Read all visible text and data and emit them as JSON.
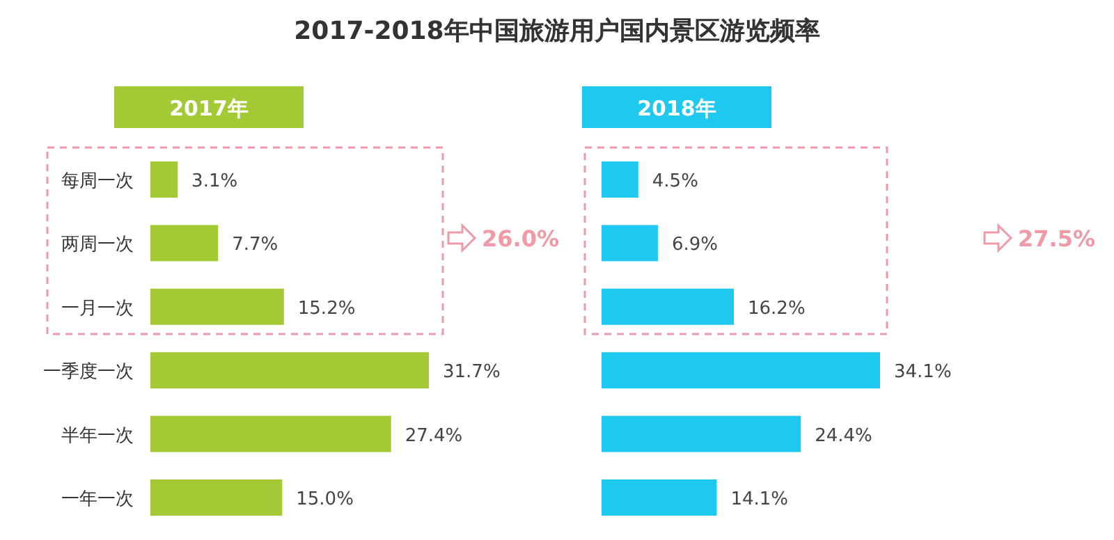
{
  "chart_data": [
    {
      "type": "bar",
      "orientation": "horizontal",
      "title": "2017-2018年中国旅游用户国内景区游览频率",
      "subtitle": "2017年",
      "categories": [
        "每周一次",
        "两周一次",
        "一月一次",
        "一季度一次",
        "半年一次",
        "一年一次"
      ],
      "values": [
        3.1,
        7.7,
        15.2,
        31.7,
        27.4,
        15.0
      ],
      "value_labels": [
        "3.1%",
        "7.7%",
        "15.2%",
        "31.7%",
        "27.4%",
        "15.0%"
      ],
      "color": "#a3c935",
      "annotations": [
        "26.0%"
      ]
    },
    {
      "type": "bar",
      "orientation": "horizontal",
      "subtitle": "2018年",
      "categories": [
        null,
        null,
        null,
        null,
        null,
        null
      ],
      "values": [
        4.5,
        6.9,
        16.2,
        34.1,
        24.4,
        14.1
      ],
      "value_labels": [
        "4.5%",
        "6.9%",
        "16.2%",
        "34.1%",
        "24.4%",
        "14.1%"
      ],
      "color": "#1fc8ef",
      "annotations": [
        "27.5%"
      ]
    }
  ]
}
